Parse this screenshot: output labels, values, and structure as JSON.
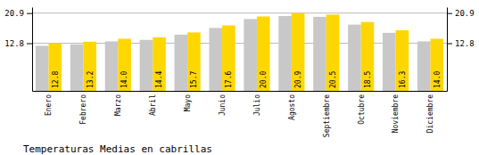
{
  "chart_data": {
    "type": "bar",
    "title": "Temperaturas Medias en cabrillas",
    "categories": [
      "Enero",
      "Febrero",
      "Marzo",
      "Abril",
      "Mayo",
      "Junio",
      "Julio",
      "Agosto",
      "Septiembre",
      "Octubre",
      "Noviembre",
      "Diciembre"
    ],
    "series": [
      {
        "color": "#C8C8C8",
        "values": [
          12.1,
          12.5,
          13.3,
          13.7,
          15.1,
          16.9,
          19.3,
          20.1,
          19.9,
          17.8,
          15.6,
          13.3
        ]
      },
      {
        "color": "#FFD700",
        "values": [
          12.8,
          13.2,
          14.0,
          14.4,
          15.7,
          17.6,
          20.0,
          20.9,
          20.5,
          18.5,
          16.3,
          14.0
        ],
        "data_labels": true,
        "value_labels": [
          "12.8",
          "13.2",
          "14.0",
          "14.4",
          "15.7",
          "17.6",
          "20.0",
          "20.9",
          "20.5",
          "18.5",
          "16.3",
          "14.0"
        ]
      }
    ],
    "ylim": [
      0,
      22.5
    ],
    "yticks": [
      12.8,
      20.9
    ],
    "y2lim": [
      0,
      22.5
    ],
    "y2ticks": [
      12.8,
      20.9
    ],
    "grid": true
  }
}
